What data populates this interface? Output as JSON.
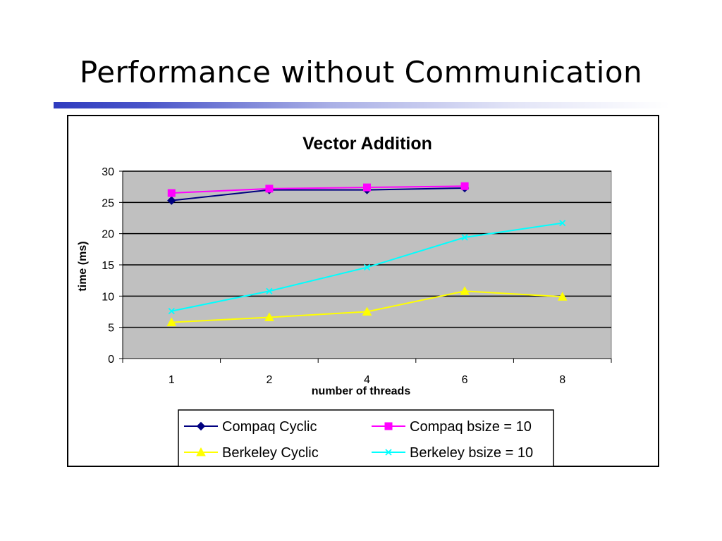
{
  "slide": {
    "title": "Performance without Communication"
  },
  "chart_data": {
    "type": "line",
    "title": "Vector Addition",
    "xlabel": "number of threads",
    "ylabel": "time (ms)",
    "categories": [
      "1",
      "2",
      "4",
      "6",
      "8"
    ],
    "ylim": [
      0,
      30
    ],
    "yticks": [
      0,
      5,
      10,
      15,
      20,
      25,
      30
    ],
    "grid": true,
    "legend_position": "bottom",
    "plot_background": "#c0c0c0",
    "series": [
      {
        "name": "Compaq Cyclic",
        "values": [
          25.3,
          27.0,
          27.0,
          27.3,
          null
        ],
        "color": "#000080",
        "marker": "diamond"
      },
      {
        "name": "Compaq bsize = 10",
        "values": [
          26.5,
          27.2,
          27.4,
          27.6,
          null
        ],
        "color": "#ff00ff",
        "marker": "square"
      },
      {
        "name": "Berkeley Cyclic",
        "values": [
          5.8,
          6.6,
          7.5,
          10.8,
          9.9
        ],
        "color": "#ffff00",
        "marker": "triangle"
      },
      {
        "name": "Berkeley bsize = 10",
        "values": [
          7.6,
          10.8,
          14.6,
          19.4,
          21.7
        ],
        "color": "#00ffff",
        "marker": "x"
      }
    ]
  }
}
